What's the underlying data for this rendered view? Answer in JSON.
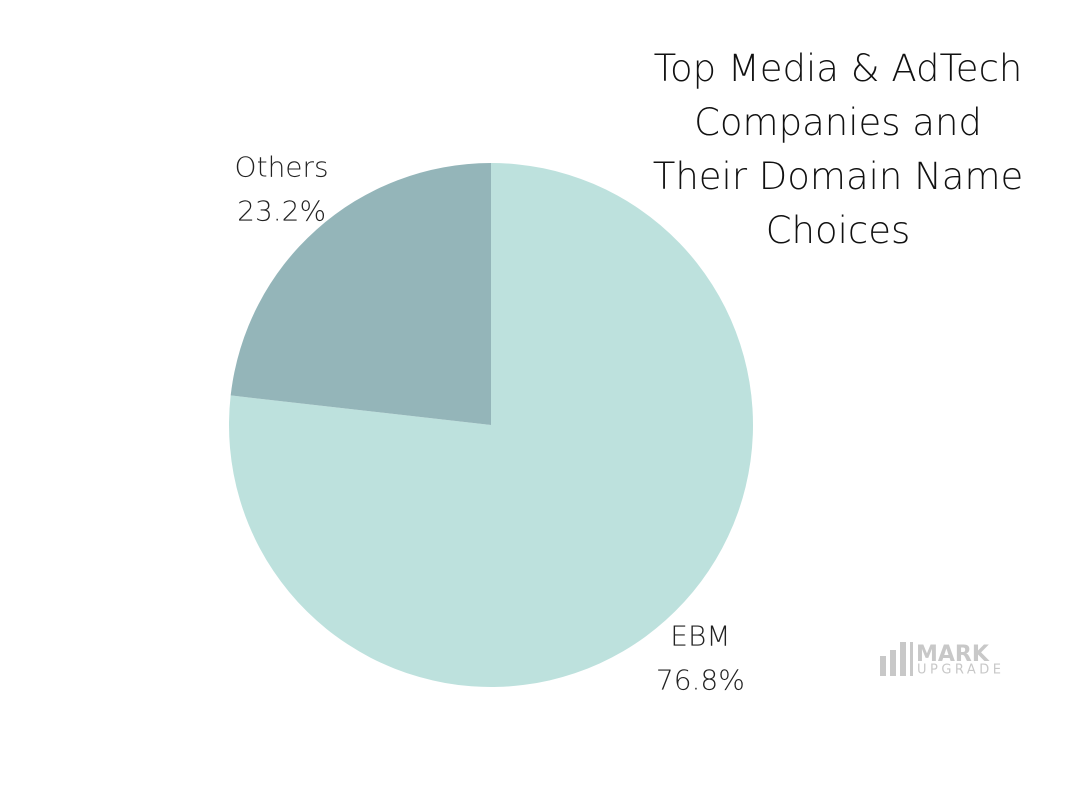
{
  "chart_data": {
    "type": "pie",
    "title": "Top Media & AdTech Companies and Their Domain Name Choices",
    "categories": [
      "EBM",
      "Others"
    ],
    "values": [
      76.8,
      23.2
    ],
    "value_labels": [
      "76.8%",
      "23.2%"
    ],
    "colors": [
      "#bde1dd",
      "#94b5b9"
    ],
    "watermark": [
      "MARK",
      "UPGRADE"
    ]
  }
}
